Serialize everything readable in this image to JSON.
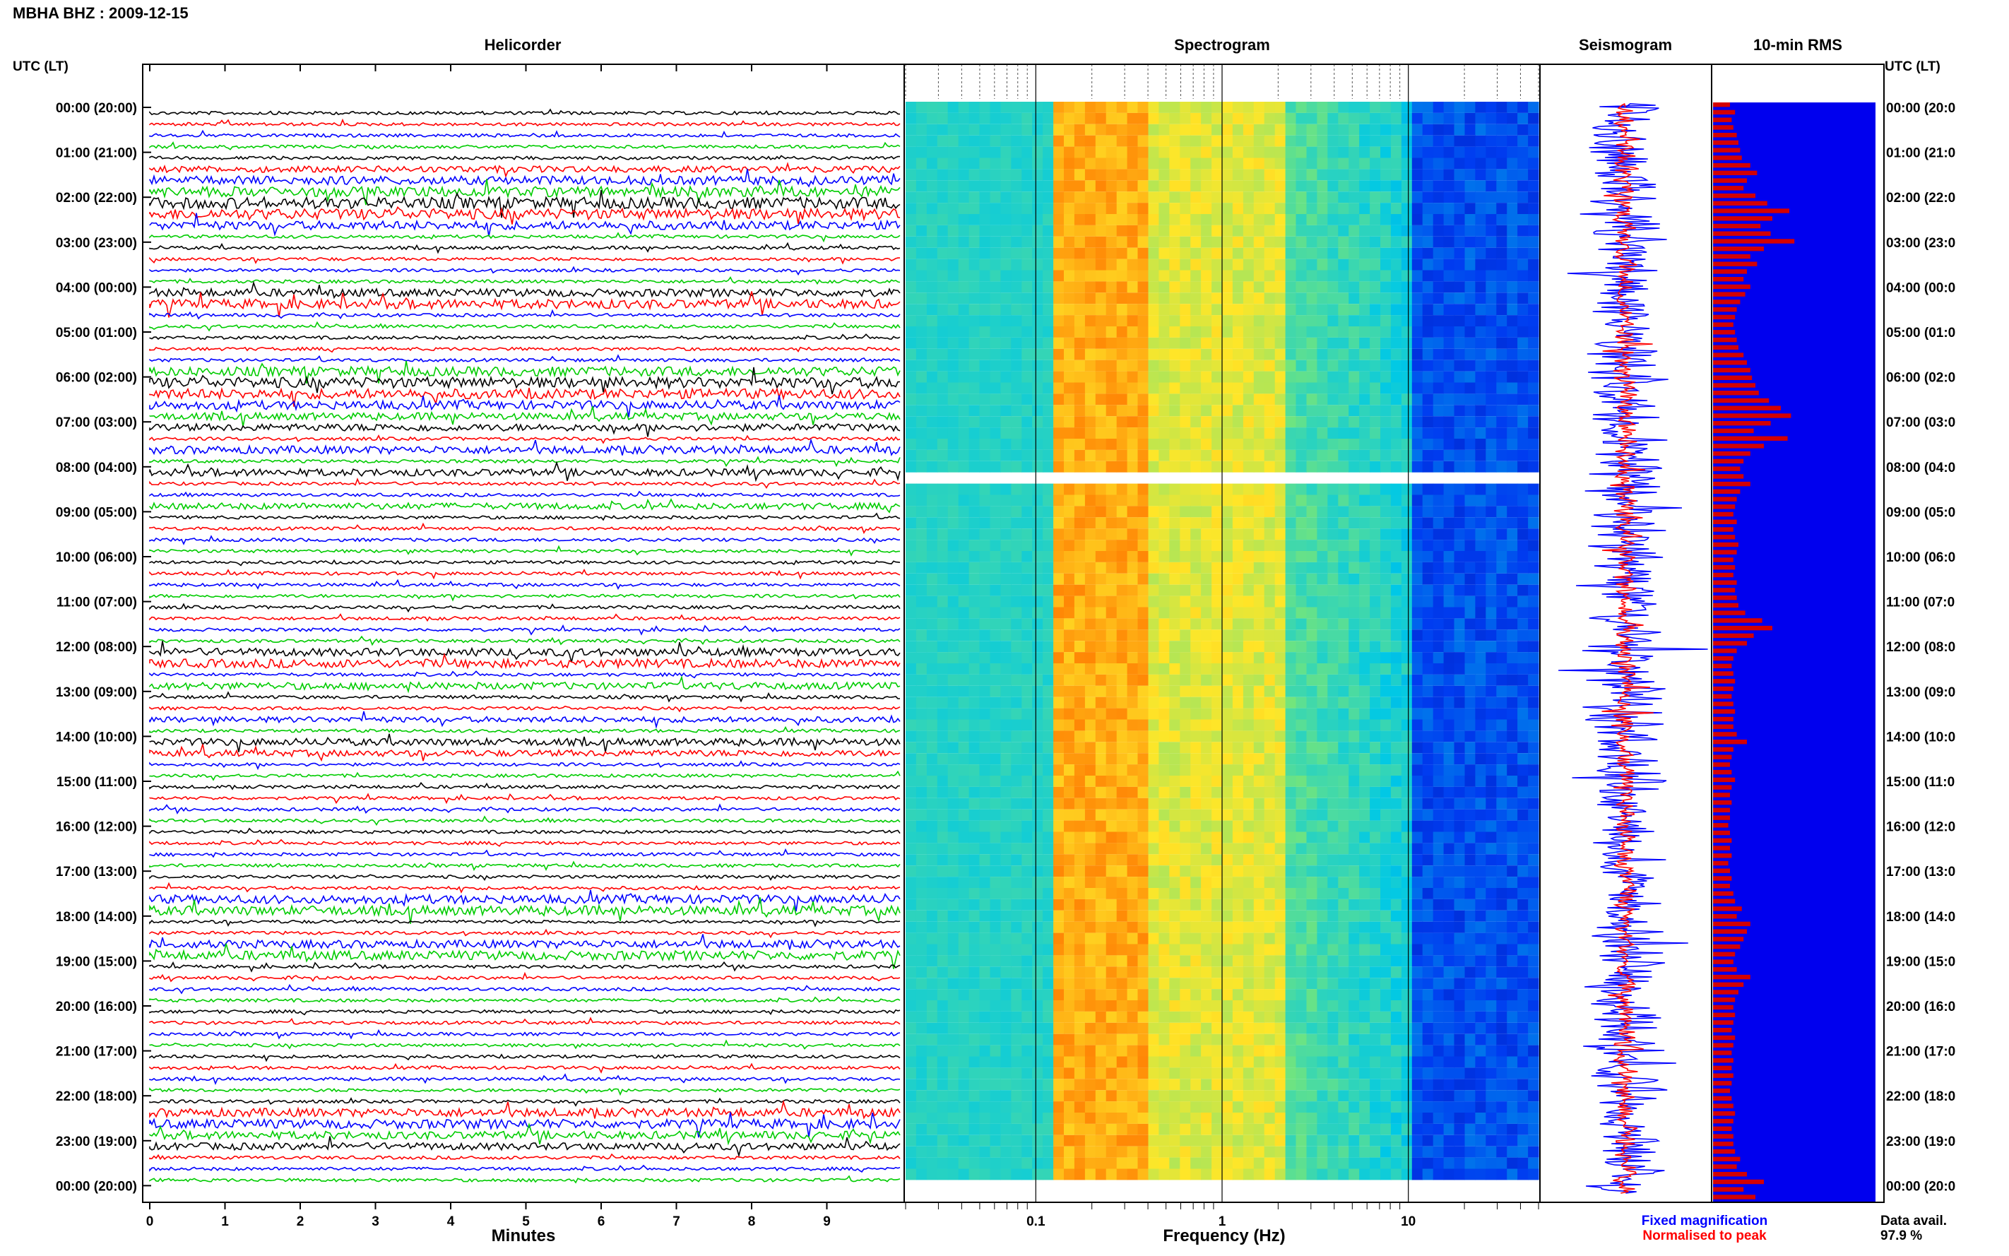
{
  "header": {
    "station_title": "MBHA BHZ : 2009-12-15",
    "utc_label": "UTC (LT)",
    "utc_label_right": "UTC (LT)"
  },
  "panels": {
    "helicorder": "Helicorder",
    "spectrogram": "Spectrogram",
    "seismogram": "Seismogram",
    "rms": "10-min RMS"
  },
  "axes": {
    "helicorder_xlabel": "Minutes",
    "spectrogram_xlabel": "Frequency (Hz)",
    "minute_ticks": [
      "0",
      "1",
      "2",
      "3",
      "4",
      "5",
      "6",
      "7",
      "8",
      "9"
    ],
    "freq_ticks": [
      "0.1",
      "1",
      "10"
    ]
  },
  "legend": {
    "fixed": "Fixed magnification",
    "normalised": "Normalised to peak",
    "fixed_color": "#0000ff",
    "normalised_color": "#ff0000"
  },
  "availability": {
    "label": "Data avail.",
    "value": "97.9 %"
  },
  "colors": {
    "helicorder_traces": [
      "#000000",
      "#ff0000",
      "#0000ff",
      "#00cc00"
    ],
    "rms_bar": "#d40000",
    "rms_background": "#0000ee"
  },
  "chart_data": {
    "type": "heatmap",
    "hour_labels_left": [
      "00:00 (20:00)",
      "01:00 (21:00)",
      "02:00 (22:00)",
      "03:00 (23:00)",
      "04:00 (00:00)",
      "05:00 (01:00)",
      "06:00 (02:00)",
      "07:00 (03:00)",
      "08:00 (04:00)",
      "09:00 (05:00)",
      "10:00 (06:00)",
      "11:00 (07:00)",
      "12:00 (08:00)",
      "13:00 (09:00)",
      "14:00 (10:00)",
      "15:00 (11:00)",
      "16:00 (12:00)",
      "17:00 (13:00)",
      "18:00 (14:00)",
      "19:00 (15:00)",
      "20:00 (16:00)",
      "21:00 (17:00)",
      "22:00 (18:00)",
      "23:00 (19:00)",
      "00:00 (20:00)"
    ],
    "hour_labels_right": [
      "00:00 (20:0",
      "01:00 (21:0",
      "02:00 (22:0",
      "03:00 (23:0",
      "04:00 (00:0",
      "05:00 (01:0",
      "06:00 (02:0",
      "07:00 (03:0",
      "08:00 (04:0",
      "09:00 (05:0",
      "10:00 (06:0",
      "11:00 (07:0",
      "12:00 (08:0",
      "13:00 (09:0",
      "14:00 (10:0",
      "15:00 (11:0",
      "16:00 (12:0",
      "17:00 (13:0",
      "18:00 (14:0",
      "19:00 (15:0",
      "20:00 (16:0",
      "21:00 (17:0",
      "22:00 (18:0",
      "23:00 (19:0",
      "00:00 (20:0"
    ],
    "minutes_range": [
      0,
      10
    ],
    "frequency_range_hz": [
      0.02,
      50
    ],
    "frequency_scale": "log",
    "rms_10min": [
      0.1,
      0.13,
      0.11,
      0.12,
      0.14,
      0.15,
      0.16,
      0.17,
      0.22,
      0.26,
      0.2,
      0.18,
      0.25,
      0.32,
      0.45,
      0.35,
      0.28,
      0.34,
      0.48,
      0.3,
      0.22,
      0.26,
      0.2,
      0.18,
      0.22,
      0.19,
      0.16,
      0.14,
      0.13,
      0.12,
      0.13,
      0.14,
      0.15,
      0.18,
      0.2,
      0.22,
      0.23,
      0.25,
      0.27,
      0.33,
      0.4,
      0.46,
      0.34,
      0.24,
      0.44,
      0.3,
      0.22,
      0.18,
      0.16,
      0.18,
      0.22,
      0.16,
      0.14,
      0.13,
      0.12,
      0.14,
      0.12,
      0.13,
      0.15,
      0.14,
      0.12,
      0.13,
      0.12,
      0.14,
      0.13,
      0.14,
      0.15,
      0.19,
      0.29,
      0.35,
      0.24,
      0.2,
      0.14,
      0.12,
      0.11,
      0.12,
      0.13,
      0.12,
      0.11,
      0.12,
      0.13,
      0.12,
      0.12,
      0.14,
      0.2,
      0.12,
      0.11,
      0.1,
      0.11,
      0.13,
      0.11,
      0.1,
      0.11,
      0.1,
      0.1,
      0.09,
      0.1,
      0.11,
      0.1,
      0.11,
      0.09,
      0.1,
      0.11,
      0.1,
      0.12,
      0.13,
      0.17,
      0.14,
      0.22,
      0.2,
      0.18,
      0.16,
      0.13,
      0.12,
      0.14,
      0.22,
      0.18,
      0.15,
      0.13,
      0.12,
      0.13,
      0.12,
      0.11,
      0.13,
      0.12,
      0.11,
      0.12,
      0.11,
      0.12,
      0.11,
      0.1,
      0.11,
      0.12,
      0.13,
      0.12,
      0.11,
      0.12,
      0.12,
      0.13,
      0.16,
      0.14,
      0.2,
      0.3,
      0.18,
      0.25
    ]
  }
}
